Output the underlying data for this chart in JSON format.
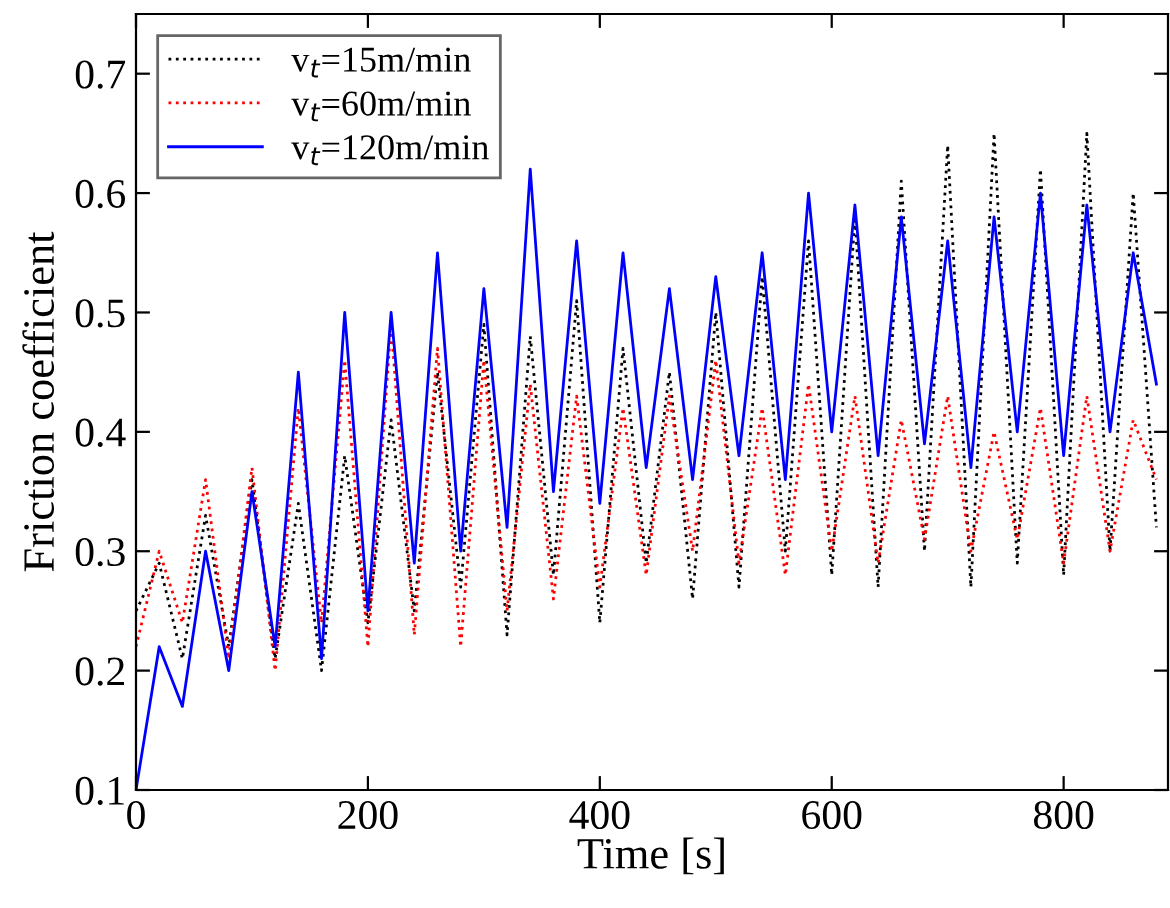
{
  "chart_data": {
    "type": "line",
    "xlabel": "Time [s]",
    "ylabel": "Friction coefficient",
    "xlim": [
      0,
      890
    ],
    "ylim": [
      0.1,
      0.75
    ],
    "xticks": [
      0,
      200,
      400,
      600,
      800
    ],
    "yticks": [
      0.1,
      0.2,
      0.3,
      0.4,
      0.5,
      0.6,
      0.7
    ],
    "x": [
      0,
      20,
      40,
      60,
      80,
      100,
      120,
      140,
      160,
      180,
      200,
      220,
      240,
      260,
      280,
      300,
      320,
      340,
      360,
      380,
      400,
      420,
      440,
      460,
      480,
      500,
      520,
      540,
      560,
      580,
      600,
      620,
      640,
      660,
      680,
      700,
      720,
      740,
      760,
      780,
      800,
      820,
      840,
      860,
      880
    ],
    "legend": "top left",
    "grid": false,
    "series": [
      {
        "name": "v$_{t}$=15m/min",
        "color": "#000000",
        "line_style": "dotted",
        "values": [
          0.25,
          0.29,
          0.21,
          0.33,
          0.22,
          0.36,
          0.21,
          0.34,
          0.2,
          0.38,
          0.24,
          0.41,
          0.25,
          0.45,
          0.27,
          0.49,
          0.23,
          0.48,
          0.28,
          0.51,
          0.24,
          0.47,
          0.29,
          0.45,
          0.26,
          0.5,
          0.27,
          0.53,
          0.3,
          0.56,
          0.28,
          0.58,
          0.27,
          0.61,
          0.3,
          0.64,
          0.27,
          0.65,
          0.29,
          0.62,
          0.28,
          0.65,
          0.3,
          0.6,
          0.32
        ]
      },
      {
        "name": "v$_{t}$=60m/min",
        "color": "#ff0000",
        "line_style": "dotted",
        "values": [
          0.22,
          0.3,
          0.24,
          0.36,
          0.21,
          0.37,
          0.2,
          0.42,
          0.24,
          0.46,
          0.22,
          0.49,
          0.23,
          0.47,
          0.22,
          0.46,
          0.25,
          0.44,
          0.26,
          0.43,
          0.27,
          0.42,
          0.28,
          0.43,
          0.3,
          0.46,
          0.29,
          0.42,
          0.28,
          0.44,
          0.3,
          0.43,
          0.29,
          0.41,
          0.31,
          0.43,
          0.3,
          0.4,
          0.31,
          0.42,
          0.29,
          0.43,
          0.3,
          0.41,
          0.36
        ]
      },
      {
        "name": "v$_{t}$=120m/min",
        "color": "#0000ff",
        "line_style": "solid",
        "values": [
          0.1,
          0.22,
          0.17,
          0.3,
          0.2,
          0.35,
          0.22,
          0.45,
          0.21,
          0.5,
          0.25,
          0.5,
          0.29,
          0.55,
          0.3,
          0.52,
          0.32,
          0.62,
          0.35,
          0.56,
          0.34,
          0.55,
          0.37,
          0.52,
          0.36,
          0.53,
          0.38,
          0.55,
          0.36,
          0.6,
          0.4,
          0.59,
          0.38,
          0.58,
          0.39,
          0.56,
          0.37,
          0.58,
          0.4,
          0.6,
          0.38,
          0.59,
          0.4,
          0.55,
          0.44
        ]
      }
    ]
  }
}
